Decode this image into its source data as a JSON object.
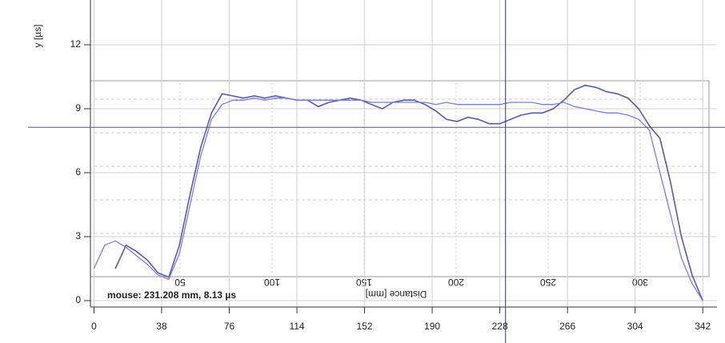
{
  "chart_data": {
    "type": "line",
    "y_label": "y [µs]",
    "mouse_readout": "mouse: 231.208 mm, 8.13 µs",
    "cursor": {
      "x": 231.208,
      "y": 8.13
    },
    "xlim": [
      -2,
      350
    ],
    "ylim": [
      -0.3,
      14.1
    ],
    "xticks": [
      0,
      38,
      76,
      114,
      152,
      190,
      228,
      266,
      304,
      342
    ],
    "yticks": [
      0,
      3,
      6,
      9,
      12
    ],
    "grid": true,
    "overlay_labels": [
      "50",
      "100",
      "150",
      "200",
      "250",
      "300",
      "Distance [mm]"
    ],
    "x": [
      0,
      6,
      12,
      18,
      24,
      30,
      36,
      42,
      48,
      54,
      60,
      66,
      72,
      78,
      84,
      90,
      96,
      102,
      108,
      114,
      120,
      126,
      132,
      138,
      144,
      150,
      156,
      162,
      168,
      174,
      180,
      186,
      192,
      198,
      204,
      210,
      216,
      222,
      228,
      234,
      240,
      246,
      252,
      258,
      264,
      270,
      276,
      282,
      288,
      294,
      300,
      306,
      312,
      318,
      324,
      330,
      336,
      342
    ],
    "series": [
      {
        "color": "#5a5aa8",
        "values": [
          null,
          null,
          1.5,
          2.6,
          2.3,
          1.9,
          1.3,
          1.1,
          2.6,
          5.0,
          7.2,
          8.8,
          9.7,
          9.6,
          9.5,
          9.6,
          9.5,
          9.6,
          9.5,
          9.4,
          9.4,
          9.1,
          9.3,
          9.4,
          9.5,
          9.4,
          9.2,
          9.0,
          9.3,
          9.4,
          9.4,
          9.2,
          8.9,
          8.5,
          8.4,
          8.6,
          8.5,
          8.3,
          8.3,
          8.5,
          8.7,
          8.8,
          8.8,
          9.0,
          9.4,
          9.9,
          10.1,
          10.0,
          9.8,
          9.7,
          9.5,
          9.0,
          8.2,
          7.6,
          5.5,
          3.0,
          1.2,
          0
        ]
      },
      {
        "color": "#7b7be8",
        "values": [
          1.5,
          2.6,
          2.8,
          2.5,
          2.1,
          1.7,
          1.2,
          1.0,
          2.2,
          4.5,
          6.8,
          8.5,
          9.2,
          9.4,
          9.4,
          9.5,
          9.4,
          9.5,
          9.5,
          9.4,
          9.4,
          9.4,
          9.4,
          9.4,
          9.4,
          9.4,
          9.3,
          9.3,
          9.3,
          9.3,
          9.3,
          9.3,
          9.2,
          9.3,
          9.2,
          9.2,
          9.2,
          9.2,
          9.2,
          9.3,
          9.3,
          9.3,
          9.2,
          9.2,
          9.3,
          9.1,
          9.0,
          8.9,
          8.8,
          8.8,
          8.7,
          8.5,
          8.0,
          6.0,
          4.0,
          2.0,
          0.8,
          0
        ]
      }
    ]
  }
}
